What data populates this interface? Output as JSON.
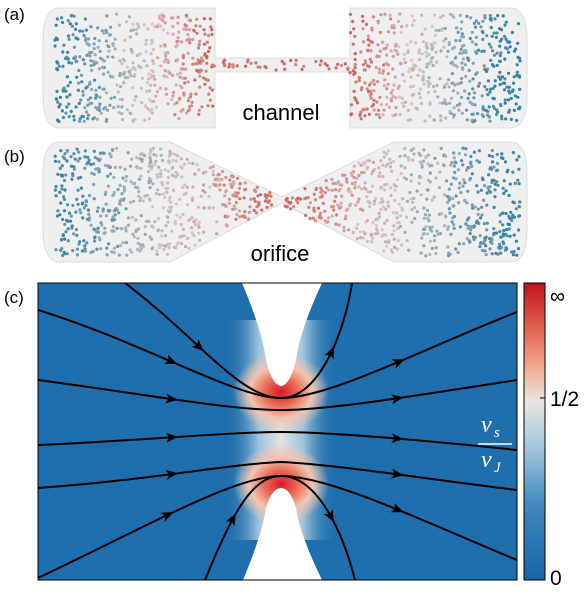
{
  "panels": [
    {
      "label": "(a)",
      "caption": "channel"
    },
    {
      "label": "(b)",
      "caption": "orifice"
    },
    {
      "label": "(c)"
    }
  ],
  "colorbar": {
    "labels": [
      "∞",
      "1/2",
      "0"
    ],
    "quantity": {
      "numerator": "v",
      "numerator_sub": "s",
      "denominator": "v",
      "denominator_sub": "J"
    }
  }
}
